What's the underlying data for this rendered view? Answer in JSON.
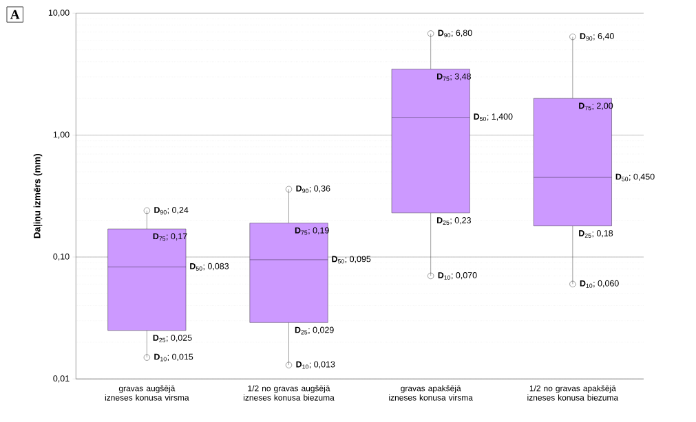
{
  "chart_data": {
    "type": "box",
    "ylabel": "Daļiņu izmērs (mm)",
    "categories": [
      "gravas augšējā izneses konusa virsma",
      "1/2  no gravas augšējā izneses konusa biezuma",
      "gravas apakšējā izneses konusa virsma",
      "1/2  no gravas apakšējā izneses konusa biezuma"
    ],
    "boxes": [
      {
        "low": 0.015,
        "q1": 0.025,
        "median": 0.083,
        "q3": 0.17,
        "high": 0.24
      },
      {
        "low": 0.013,
        "q1": 0.029,
        "median": 0.095,
        "q3": 0.19,
        "high": 0.36
      },
      {
        "low": 0.07,
        "q1": 0.23,
        "median": 1.4,
        "q3": 3.48,
        "high": 6.8
      },
      {
        "low": 0.06,
        "q1": 0.18,
        "median": 0.45,
        "q3": 2.0,
        "high": 6.4
      }
    ],
    "color": "#cc99ff",
    "log": "y",
    "grid": "y",
    "ylim": [
      0.01,
      10
    ],
    "yticks": [
      {
        "value": 0.01,
        "label": "0,01"
      },
      {
        "value": 0.1,
        "label": "0,10"
      },
      {
        "value": 1,
        "label": "1,00"
      },
      {
        "value": 10,
        "label": "10,00"
      }
    ],
    "annotations": [
      "A",
      {
        "text": "**D**$_{90}$; 0,24",
        "x": "gravas augšējā izneses konusa virsma",
        "y": 0.24
      },
      {
        "text": "**D**$_{75}$; 0,17",
        "x": "gravas augšējā izneses konusa virsma",
        "y": 0.17
      },
      "**D**$_{50}$; 0,083",
      {
        "text": "**D**$_{25}$; 0,025",
        "x": "gravas augšējā izneses konusa virsma",
        "y": 0.025
      },
      {
        "text": "**D**$_{10}$; 0,015",
        "x": "gravas augšējā izneses konusa virsma",
        "y": 0.015
      },
      {
        "text": "**D**$_{90}$; 0,36",
        "x": "1/2  no gravas augšējā izneses konusa biezuma",
        "y": 0.36
      },
      {
        "text": "**D**$_{75}$; 0,19",
        "x": "1/2  no gravas augšējā izneses konusa biezuma",
        "y": 0.19
      },
      "**D**$_{50}$; 0,095",
      {
        "text": "**D**$_{25}$; 0,029",
        "x": "1/2  no gravas augšējā izneses konusa biezuma",
        "y": 0.029
      },
      {
        "text": "**D**$_{10}$; 0,013",
        "x": "1/2  no gravas augšējā izneses konusa biezuma",
        "y": 0.013
      },
      {
        "text": "**D**$_{90}$; 6,80",
        "x": "gravas apakšējā izneses konusa virsma",
        "y": 6.8
      },
      {
        "text": "**D**$_{75}$; 3,48",
        "x": "gravas apakšējā izneses konusa virsma",
        "y": 3.48
      },
      "**D**$_{50}$; 1,400",
      {
        "text": "**D**$_{25}$; 0,23",
        "x": "gravas apakšējā izneses konusa virsma",
        "y": 0.23
      },
      {
        "text": "**D**$_{10}$; 0,070",
        "x": "gravas apakšējā izneses konusa virsma",
        "y": 0.07
      },
      {
        "text": "**D**$_{90}$; 6,40",
        "x": "1/2  no gravas apakšējā izneses konusa biezuma",
        "y": 6.4
      },
      {
        "text": "**D**$_{75}$; 2,00",
        "x": "1/2  no gravas apakšējā izneses konusa biezuma",
        "y": 2.0
      },
      "**D**$_{50}$; 0,450",
      {
        "text": "**D**$_{25}$; 0,18",
        "x": "1/2  no gravas apakšējā izneses konusa biezuma",
        "y": 0.18
      },
      {
        "text": "**D**$_{10}$; 0,060",
        "x": "1/2  no gravas apakšējā izneses konusa biezuma",
        "y": 0.06
      }
    ]
  }
}
